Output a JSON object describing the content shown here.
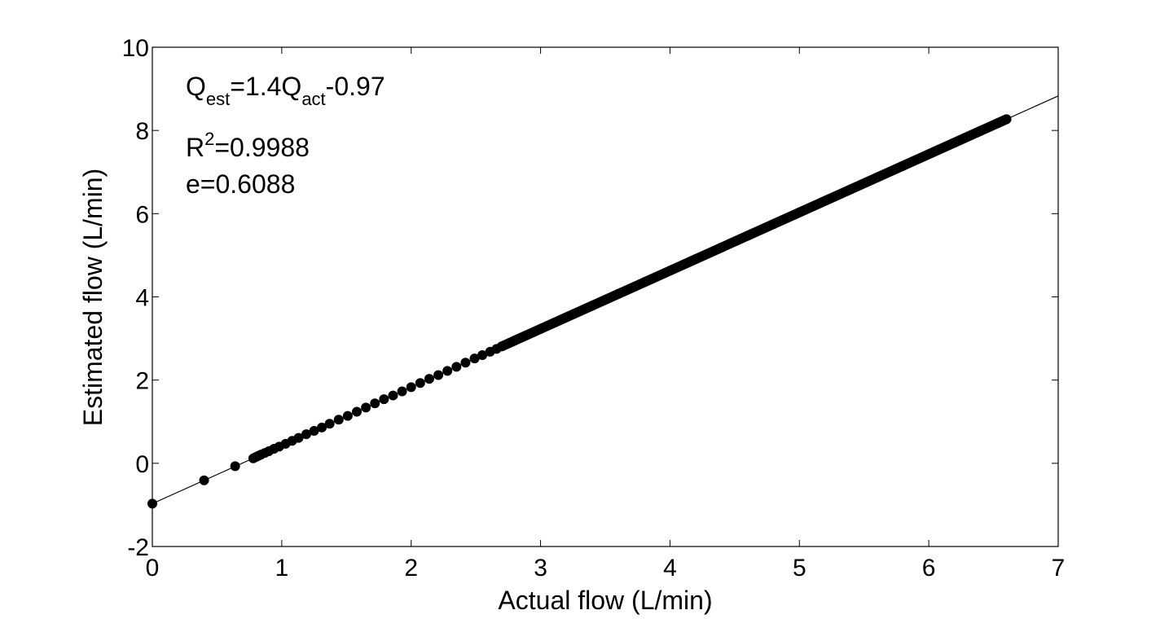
{
  "chart_data": {
    "type": "scatter",
    "title": "",
    "xlabel": "Actual flow (L/min)",
    "ylabel": "Estimated flow (L/min)",
    "xlim": [
      0,
      7
    ],
    "ylim": [
      -2,
      10
    ],
    "xticks": [
      "0",
      "1",
      "2",
      "3",
      "4",
      "5",
      "6",
      "7"
    ],
    "yticks": [
      "-2",
      "0",
      "2",
      "4",
      "6",
      "8",
      "10"
    ],
    "grid": false,
    "legend": "none",
    "marker_color": "#000000",
    "series": [
      {
        "points": [
          [
            0.0,
            -0.97
          ],
          [
            0.4,
            -0.41
          ],
          [
            0.64,
            -0.07
          ],
          [
            0.78,
            0.12
          ],
          [
            0.8,
            0.15
          ],
          [
            0.82,
            0.18
          ],
          [
            0.84,
            0.21
          ],
          [
            0.87,
            0.25
          ],
          [
            0.9,
            0.29
          ],
          [
            0.94,
            0.35
          ],
          [
            0.98,
            0.4
          ],
          [
            1.03,
            0.47
          ],
          [
            1.08,
            0.54
          ],
          [
            1.13,
            0.61
          ],
          [
            1.19,
            0.7
          ],
          [
            1.25,
            0.78
          ],
          [
            1.31,
            0.86
          ],
          [
            1.37,
            0.95
          ],
          [
            1.44,
            1.05
          ],
          [
            1.51,
            1.14
          ],
          [
            1.58,
            1.24
          ],
          [
            1.65,
            1.34
          ],
          [
            1.72,
            1.44
          ],
          [
            1.79,
            1.54
          ],
          [
            1.86,
            1.63
          ],
          [
            1.93,
            1.73
          ],
          [
            2.0,
            1.83
          ],
          [
            2.07,
            1.93
          ],
          [
            2.14,
            2.03
          ],
          [
            2.21,
            2.12
          ],
          [
            2.28,
            2.22
          ],
          [
            2.35,
            2.32
          ],
          [
            2.42,
            2.42
          ],
          [
            2.49,
            2.52
          ],
          [
            2.55,
            2.6
          ],
          [
            2.61,
            2.68
          ],
          [
            2.66,
            2.75
          ],
          [
            2.7,
            2.81
          ],
          [
            2.8,
            2.95
          ],
          [
            3.0,
            3.23
          ],
          [
            3.2,
            3.51
          ],
          [
            3.4,
            3.79
          ],
          [
            3.6,
            4.07
          ],
          [
            3.8,
            4.35
          ],
          [
            4.0,
            4.63
          ],
          [
            4.2,
            4.91
          ],
          [
            4.4,
            5.19
          ],
          [
            4.6,
            5.47
          ],
          [
            4.8,
            5.75
          ],
          [
            5.0,
            6.03
          ],
          [
            5.2,
            6.31
          ],
          [
            5.4,
            6.59
          ],
          [
            5.6,
            6.87
          ],
          [
            5.8,
            7.15
          ],
          [
            6.0,
            7.43
          ],
          [
            6.2,
            7.71
          ],
          [
            6.4,
            7.99
          ],
          [
            6.6,
            8.27
          ]
        ],
        "dense_band": {
          "x_start": 2.7,
          "x_end": 6.6
        }
      }
    ],
    "fit_line": {
      "slope": 1.4,
      "intercept": -0.97,
      "x_range": [
        0,
        7
      ]
    },
    "annotations": {
      "equation": {
        "q1": "Q",
        "est": "est",
        "mid": "=1.4Q",
        "act": "act",
        "tail": "-0.97"
      },
      "r_squared": {
        "r": "R",
        "sup": "2",
        "tail": "=0.9988"
      },
      "error": "e=0.6088"
    }
  }
}
